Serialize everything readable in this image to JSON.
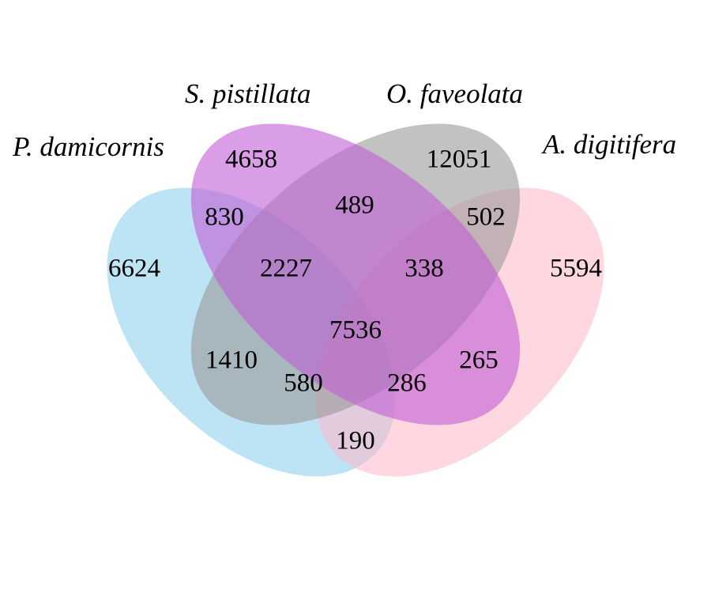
{
  "sets": [
    {
      "id": "pd",
      "name": "P. damicornis",
      "color": "#87ceeb"
    },
    {
      "id": "sp",
      "name": "S. pistillata",
      "color": "#bf5dd3"
    },
    {
      "id": "of",
      "name": "O. faveolata",
      "color": "#999999"
    },
    {
      "id": "ad",
      "name": "A. digitifera",
      "color": "#ffb6c8"
    }
  ],
  "regions": [
    {
      "sets": [
        "pd"
      ],
      "value": "6624"
    },
    {
      "sets": [
        "sp"
      ],
      "value": "4658"
    },
    {
      "sets": [
        "of"
      ],
      "value": "12051"
    },
    {
      "sets": [
        "ad"
      ],
      "value": "5594"
    },
    {
      "sets": [
        "pd",
        "sp"
      ],
      "value": "830"
    },
    {
      "sets": [
        "sp",
        "of"
      ],
      "value": "489"
    },
    {
      "sets": [
        "of",
        "ad"
      ],
      "value": "502"
    },
    {
      "sets": [
        "pd",
        "of"
      ],
      "value": "1410"
    },
    {
      "sets": [
        "sp",
        "ad"
      ],
      "value": "265"
    },
    {
      "sets": [
        "pd",
        "ad"
      ],
      "value": "190"
    },
    {
      "sets": [
        "pd",
        "sp",
        "of"
      ],
      "value": "2227"
    },
    {
      "sets": [
        "sp",
        "of",
        "ad"
      ],
      "value": "338"
    },
    {
      "sets": [
        "pd",
        "of",
        "ad"
      ],
      "value": "580"
    },
    {
      "sets": [
        "pd",
        "sp",
        "ad"
      ],
      "value": "286"
    },
    {
      "sets": [
        "pd",
        "sp",
        "of",
        "ad"
      ],
      "value": "7536"
    }
  ]
}
